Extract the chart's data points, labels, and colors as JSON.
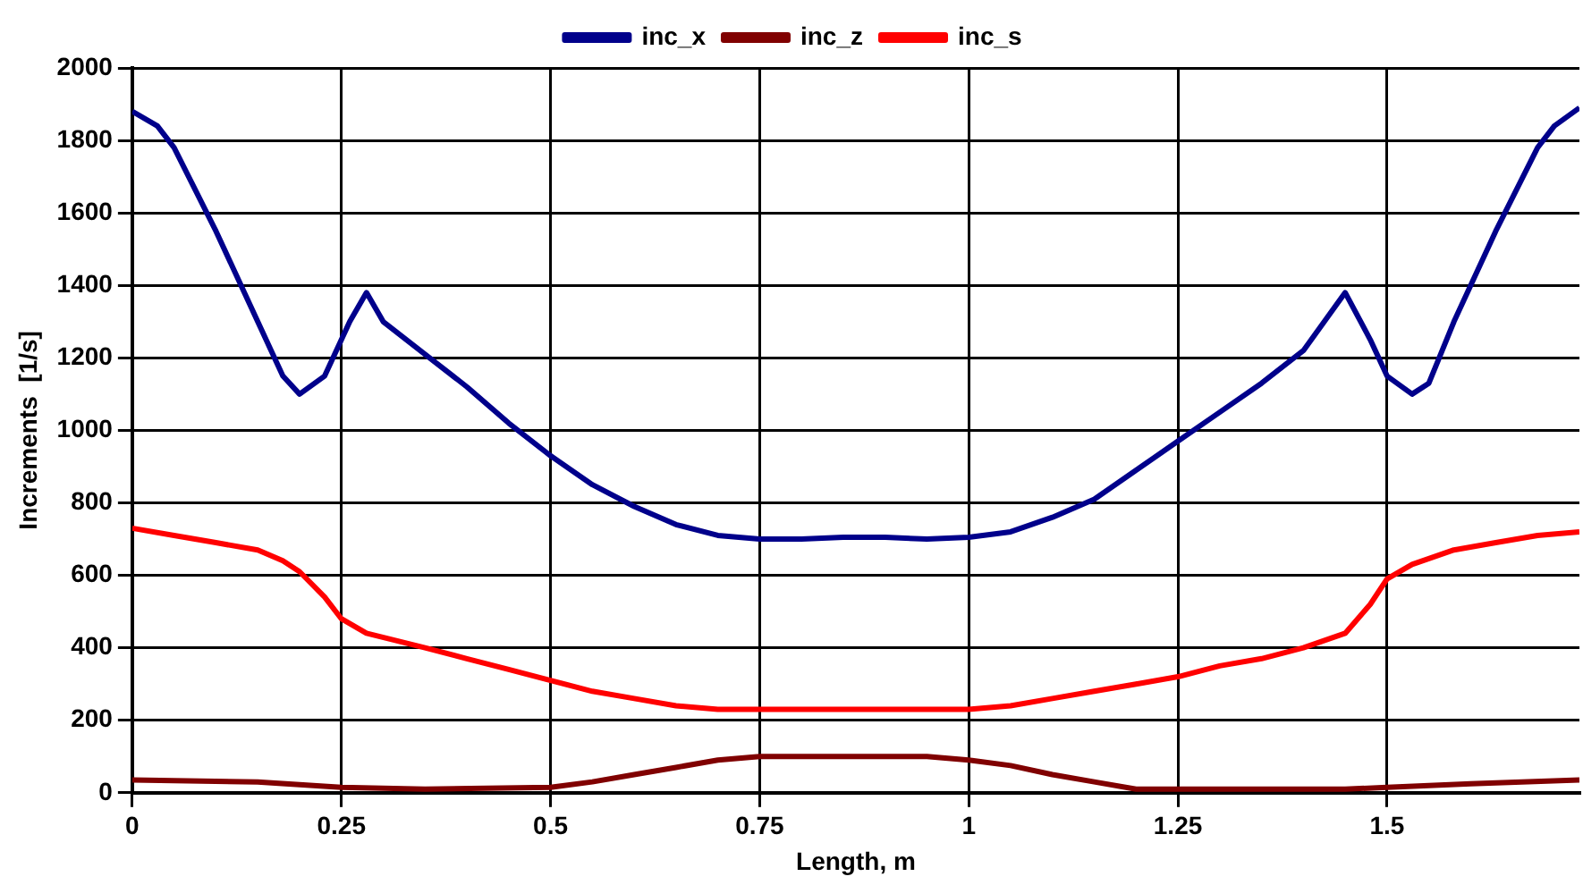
{
  "chart_data": {
    "type": "line",
    "xlabel": "Length, m",
    "ylabel": "Increments  [1/s]",
    "xlim": [
      0,
      1.73
    ],
    "xticks": [
      0,
      0.25,
      0.5,
      0.75,
      1,
      1.25,
      1.5
    ],
    "ylim": [
      0,
      2000
    ],
    "yticks": [
      0,
      200,
      400,
      600,
      800,
      1000,
      1200,
      1400,
      1600,
      1800,
      2000
    ],
    "grid": true,
    "legend": "top",
    "marker": "none",
    "line_style": "solid",
    "series": [
      {
        "name": "inc_x",
        "color": "#00008b",
        "x": [
          0,
          0.03,
          0.05,
          0.1,
          0.15,
          0.18,
          0.2,
          0.23,
          0.26,
          0.28,
          0.3,
          0.35,
          0.4,
          0.45,
          0.5,
          0.55,
          0.6,
          0.65,
          0.7,
          0.75,
          0.8,
          0.85,
          0.9,
          0.95,
          1.0,
          1.05,
          1.1,
          1.15,
          1.2,
          1.25,
          1.3,
          1.35,
          1.4,
          1.45,
          1.48,
          1.5,
          1.53,
          1.55,
          1.58,
          1.63,
          1.68,
          1.7,
          1.73
        ],
        "values": [
          1880,
          1840,
          1780,
          1550,
          1300,
          1150,
          1100,
          1150,
          1300,
          1380,
          1300,
          1210,
          1120,
          1020,
          930,
          850,
          790,
          740,
          710,
          700,
          700,
          705,
          705,
          700,
          705,
          720,
          760,
          810,
          890,
          970,
          1050,
          1130,
          1220,
          1380,
          1250,
          1150,
          1100,
          1130,
          1300,
          1550,
          1780,
          1840,
          1890
        ]
      },
      {
        "name": "inc_z",
        "color": "#800000",
        "x": [
          0,
          0.15,
          0.25,
          0.35,
          0.5,
          0.55,
          0.6,
          0.65,
          0.7,
          0.75,
          0.85,
          0.95,
          1.0,
          1.05,
          1.1,
          1.15,
          1.2,
          1.3,
          1.45,
          1.5,
          1.6,
          1.73
        ],
        "values": [
          35,
          30,
          15,
          10,
          15,
          30,
          50,
          70,
          90,
          100,
          100,
          100,
          90,
          75,
          50,
          30,
          10,
          10,
          10,
          15,
          25,
          35
        ]
      },
      {
        "name": "inc_s",
        "color": "#ff0000",
        "x": [
          0,
          0.05,
          0.1,
          0.15,
          0.18,
          0.2,
          0.23,
          0.25,
          0.28,
          0.35,
          0.4,
          0.45,
          0.5,
          0.55,
          0.6,
          0.65,
          0.7,
          0.8,
          0.9,
          1.0,
          1.05,
          1.1,
          1.15,
          1.2,
          1.25,
          1.3,
          1.35,
          1.4,
          1.45,
          1.48,
          1.5,
          1.53,
          1.58,
          1.63,
          1.68,
          1.73
        ],
        "values": [
          730,
          710,
          690,
          670,
          640,
          610,
          540,
          480,
          440,
          400,
          370,
          340,
          310,
          280,
          260,
          240,
          230,
          230,
          230,
          230,
          240,
          260,
          280,
          300,
          320,
          350,
          370,
          400,
          440,
          520,
          590,
          630,
          670,
          690,
          710,
          720
        ]
      }
    ]
  }
}
